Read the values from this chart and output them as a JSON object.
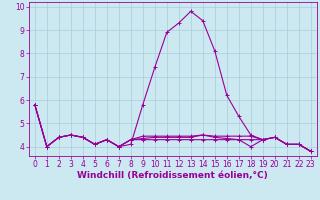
{
  "x": [
    0,
    1,
    2,
    3,
    4,
    5,
    6,
    7,
    8,
    9,
    10,
    11,
    12,
    13,
    14,
    15,
    16,
    17,
    18,
    19,
    20,
    21,
    22,
    23
  ],
  "y_main": [
    5.8,
    4.0,
    4.4,
    4.5,
    4.4,
    4.1,
    4.3,
    4.0,
    4.1,
    5.8,
    7.4,
    8.9,
    9.3,
    9.8,
    9.4,
    8.1,
    6.2,
    5.3,
    4.5,
    4.3,
    4.4,
    4.1,
    4.1,
    3.8
  ],
  "y_line2": [
    5.8,
    4.0,
    4.4,
    4.5,
    4.4,
    4.1,
    4.3,
    4.0,
    4.3,
    4.45,
    4.45,
    4.45,
    4.45,
    4.45,
    4.5,
    4.45,
    4.45,
    4.45,
    4.45,
    4.3,
    4.4,
    4.1,
    4.1,
    3.8
  ],
  "y_line3": [
    5.8,
    4.0,
    4.4,
    4.5,
    4.4,
    4.1,
    4.3,
    4.0,
    4.3,
    4.35,
    4.4,
    4.4,
    4.4,
    4.4,
    4.5,
    4.4,
    4.35,
    4.3,
    4.3,
    4.3,
    4.4,
    4.1,
    4.1,
    3.8
  ],
  "y_line4": [
    5.8,
    4.0,
    4.4,
    4.5,
    4.4,
    4.1,
    4.3,
    4.0,
    4.3,
    4.3,
    4.3,
    4.3,
    4.3,
    4.3,
    4.3,
    4.3,
    4.3,
    4.3,
    4.0,
    4.3,
    4.4,
    4.1,
    4.1,
    3.8
  ],
  "line_color": "#990099",
  "bg_color": "#cce8f0",
  "grid_color": "#aaccdd",
  "xlabel": "Windchill (Refroidissement éolien,°C)",
  "xlim": [
    -0.5,
    23.5
  ],
  "ylim": [
    3.6,
    10.2
  ],
  "yticks": [
    4,
    5,
    6,
    7,
    8,
    9,
    10
  ],
  "xticks": [
    0,
    1,
    2,
    3,
    4,
    5,
    6,
    7,
    8,
    9,
    10,
    11,
    12,
    13,
    14,
    15,
    16,
    17,
    18,
    19,
    20,
    21,
    22,
    23
  ],
  "marker": "+",
  "markersize": 3,
  "linewidth": 0.8,
  "xlabel_fontsize": 6.5,
  "tick_fontsize": 5.5
}
